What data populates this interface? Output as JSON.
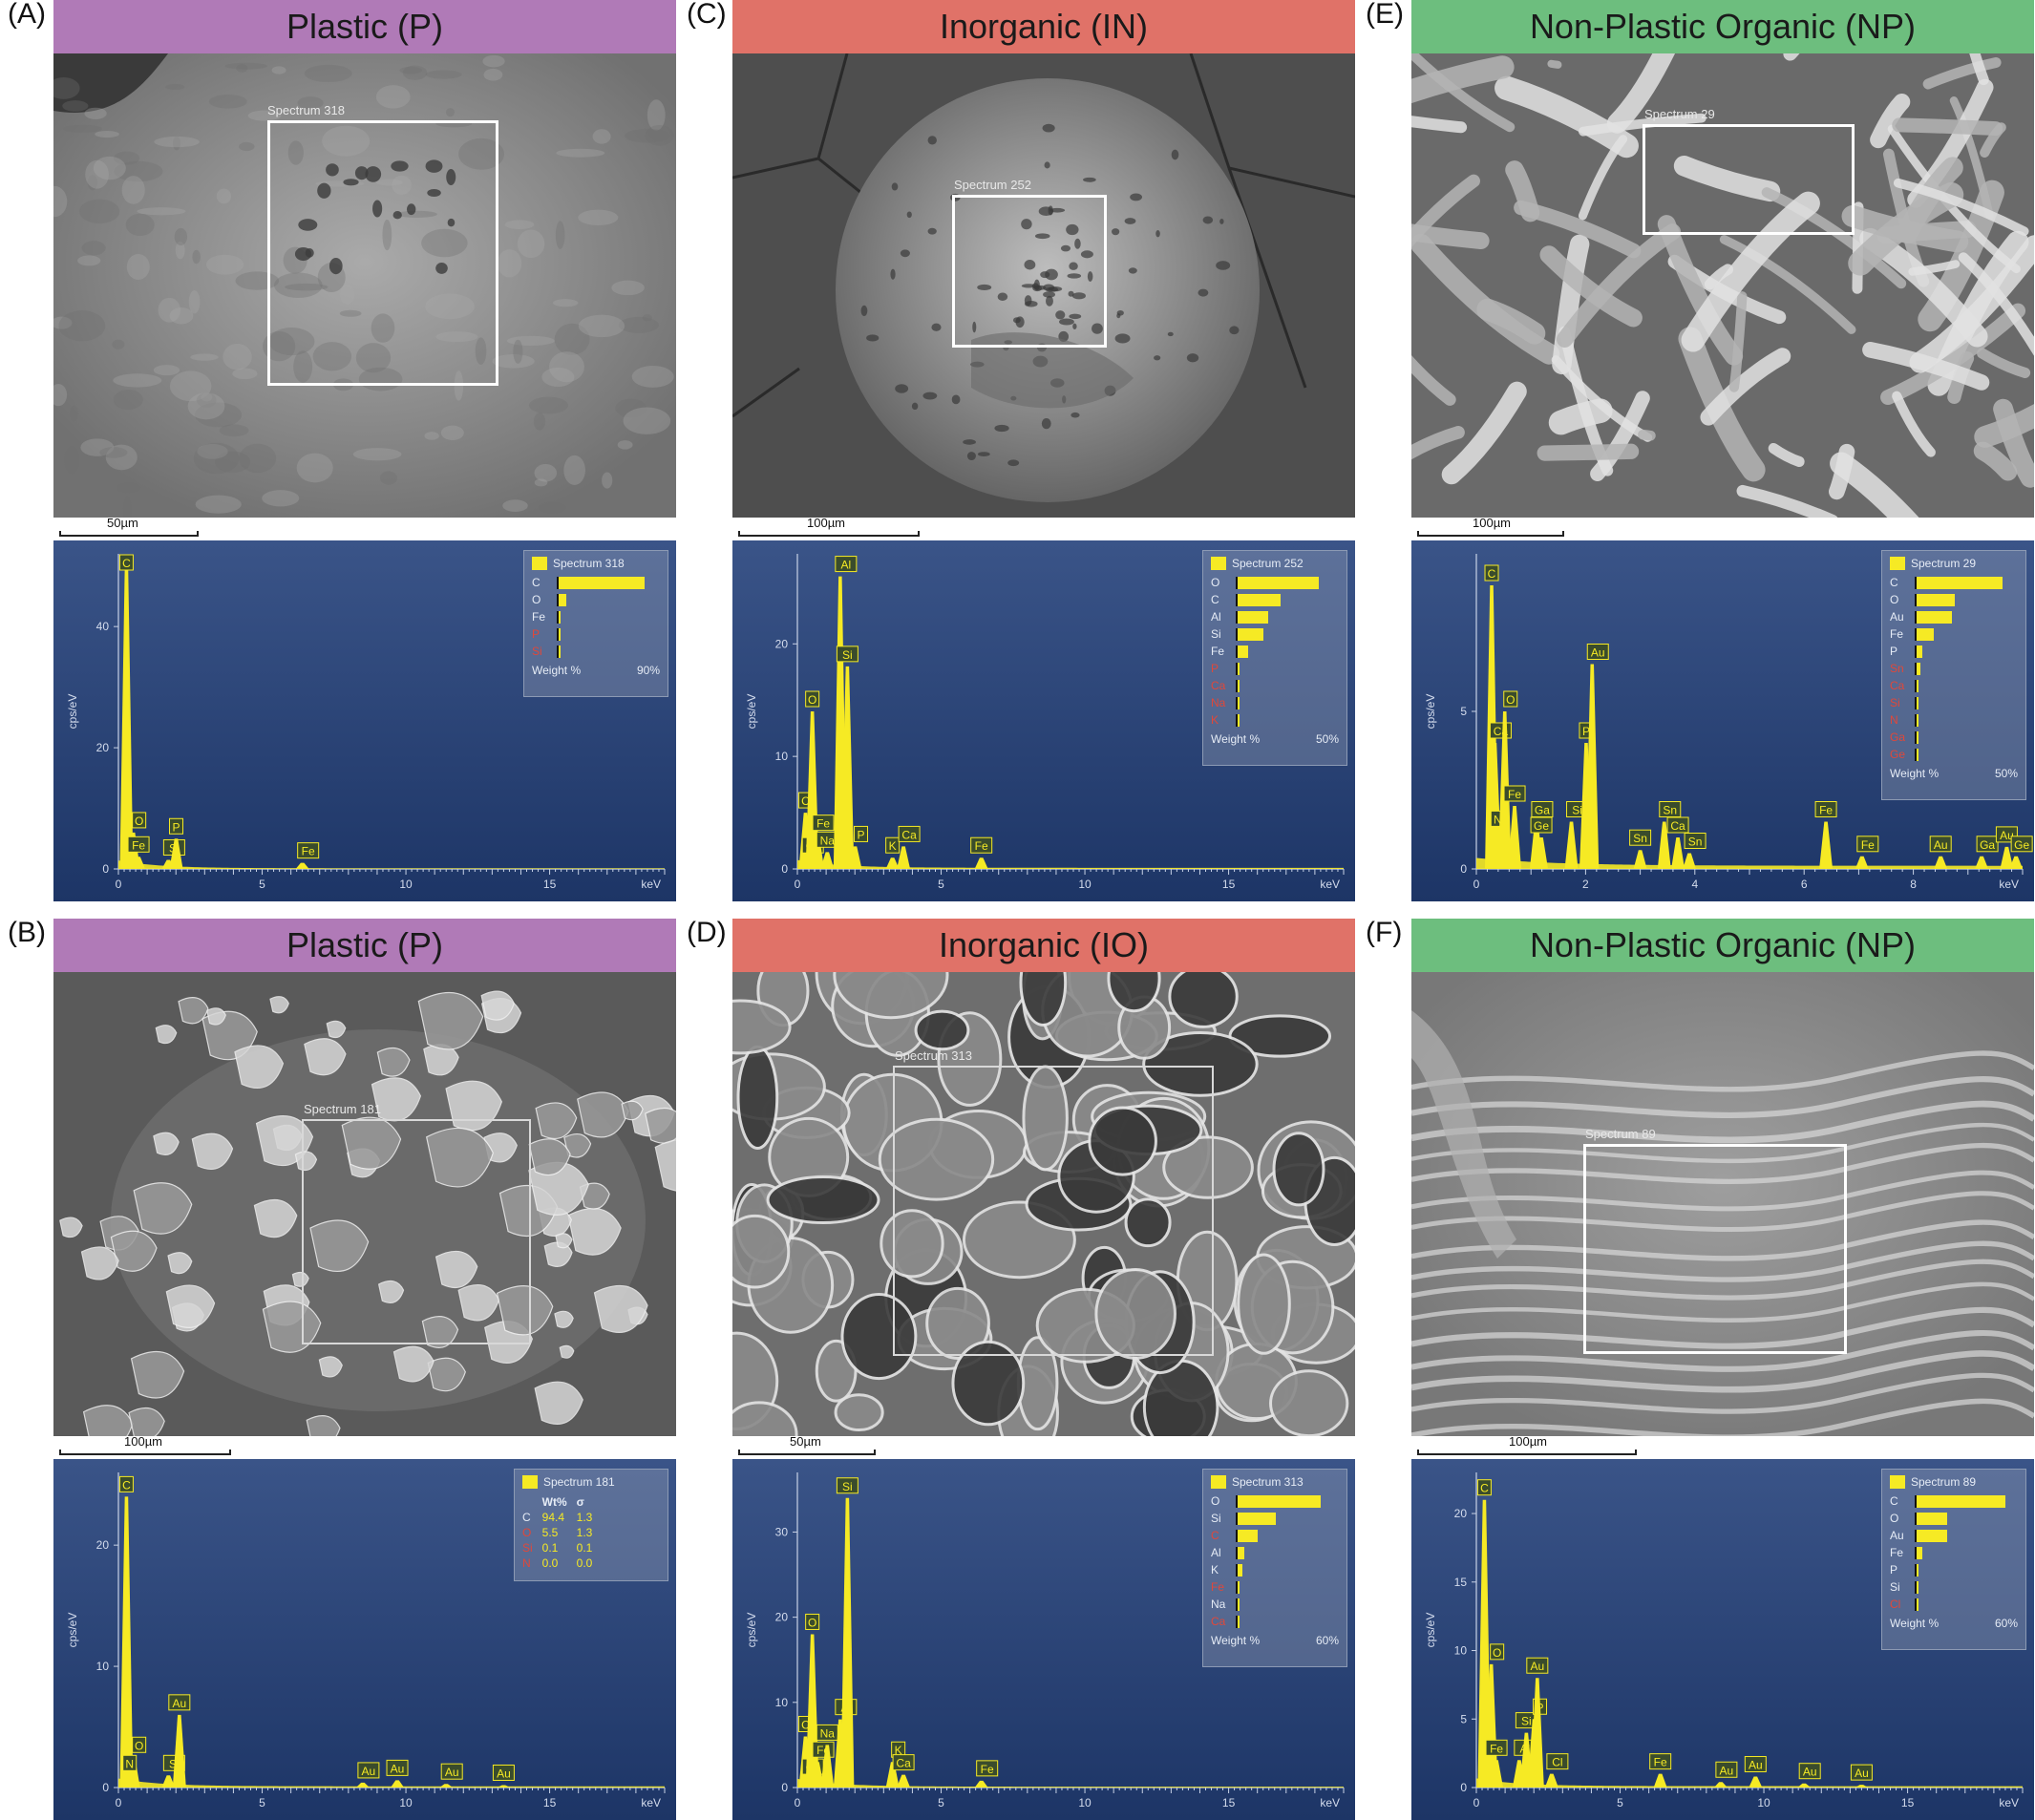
{
  "panels": [
    {
      "id": "A",
      "letter": "(A)",
      "title": "Plastic (P)",
      "banner_color": "#b07ab7",
      "sem_style": "blob",
      "roi_label": "Spectrum 318",
      "scale_label": "50µm",
      "eds": {
        "y_axis_label": "cps/eV",
        "x_axis_label": "keV",
        "y_ticks": [
          "0",
          "20",
          "40"
        ],
        "x_ticks": [
          "0",
          "5",
          "10",
          "15"
        ],
        "peaks": [
          {
            "el": "C",
            "x": 0.28,
            "y": 50
          },
          {
            "el": "O",
            "x": 0.52,
            "y": 6
          },
          {
            "el": "Fe",
            "x": 0.7,
            "y": 2
          },
          {
            "el": "Si",
            "x": 1.74,
            "y": 1.5
          },
          {
            "el": "P",
            "x": 2.01,
            "y": 5
          },
          {
            "el": "Fe",
            "x": 6.4,
            "y": 1
          }
        ],
        "legend_title": "Spectrum 318",
        "legend_type": "bars",
        "legend_items": [
          {
            "el": "C",
            "v": 0.85,
            "red": false
          },
          {
            "el": "O",
            "v": 0.08,
            "red": false
          },
          {
            "el": "Fe",
            "v": 0.01,
            "red": false
          },
          {
            "el": "P",
            "v": 0.01,
            "red": true
          },
          {
            "el": "Si",
            "v": 0.01,
            "red": true
          }
        ],
        "legend_footer_left": "Weight %",
        "legend_footer_right": "90%"
      }
    },
    {
      "id": "B",
      "letter": "(B)",
      "title": "Plastic (P)",
      "banner_color": "#b07ab7",
      "sem_style": "flakes",
      "roi_label": "Spectrum 181",
      "scale_label": "100µm",
      "eds": {
        "y_axis_label": "cps/eV",
        "x_axis_label": "keV",
        "y_ticks": [
          "0",
          "10",
          "20"
        ],
        "x_ticks": [
          "0",
          "5",
          "10",
          "15"
        ],
        "peaks": [
          {
            "el": "C",
            "x": 0.28,
            "y": 24
          },
          {
            "el": "O",
            "x": 0.52,
            "y": 2.5
          },
          {
            "el": "N",
            "x": 0.39,
            "y": 1
          },
          {
            "el": "Si",
            "x": 1.74,
            "y": 1
          },
          {
            "el": "Au",
            "x": 2.12,
            "y": 6
          },
          {
            "el": "Au",
            "x": 8.5,
            "y": 0.4
          },
          {
            "el": "Au",
            "x": 9.7,
            "y": 0.6
          },
          {
            "el": "Au",
            "x": 11.4,
            "y": 0.3
          },
          {
            "el": "Au",
            "x": 13.4,
            "y": 0.2
          }
        ],
        "legend_title": "Spectrum 181",
        "legend_type": "table",
        "legend_headers": [
          "Wt%",
          "σ"
        ],
        "legend_rows": [
          {
            "el": "C",
            "wt": "94.4",
            "sigma": "1.3",
            "red": false
          },
          {
            "el": "O",
            "wt": "5.5",
            "sigma": "1.3",
            "red": true
          },
          {
            "el": "Si",
            "wt": "0.1",
            "sigma": "0.1",
            "red": true
          },
          {
            "el": "N",
            "wt": "0.0",
            "sigma": "0.0",
            "red": true
          }
        ]
      }
    },
    {
      "id": "C",
      "letter": "(C)",
      "title": "Inorganic (IN)",
      "banner_color": "#e07268",
      "sem_style": "sphere",
      "roi_label": "Spectrum 252",
      "scale_label": "100µm",
      "eds": {
        "y_axis_label": "cps/eV",
        "x_axis_label": "keV",
        "y_ticks": [
          "0",
          "10",
          "20"
        ],
        "x_ticks": [
          "0",
          "5",
          "10",
          "15"
        ],
        "peaks": [
          {
            "el": "C",
            "x": 0.28,
            "y": 5
          },
          {
            "el": "Ca",
            "x": 0.34,
            "y": 1
          },
          {
            "el": "O",
            "x": 0.52,
            "y": 14
          },
          {
            "el": "Fe",
            "x": 0.7,
            "y": 3
          },
          {
            "el": "Na",
            "x": 1.04,
            "y": 1.5
          },
          {
            "el": "Al",
            "x": 1.49,
            "y": 26
          },
          {
            "el": "Si",
            "x": 1.74,
            "y": 18
          },
          {
            "el": "P",
            "x": 2.01,
            "y": 2
          },
          {
            "el": "K",
            "x": 3.31,
            "y": 1
          },
          {
            "el": "Ca",
            "x": 3.69,
            "y": 2
          },
          {
            "el": "Fe",
            "x": 6.4,
            "y": 1
          }
        ],
        "legend_title": "Spectrum 252",
        "legend_type": "bars",
        "legend_items": [
          {
            "el": "O",
            "v": 0.8,
            "red": false
          },
          {
            "el": "C",
            "v": 0.42,
            "red": false
          },
          {
            "el": "Al",
            "v": 0.3,
            "red": false
          },
          {
            "el": "Si",
            "v": 0.25,
            "red": false
          },
          {
            "el": "Fe",
            "v": 0.1,
            "red": false
          },
          {
            "el": "P",
            "v": 0.02,
            "red": true
          },
          {
            "el": "Ca",
            "v": 0.02,
            "red": true
          },
          {
            "el": "Na",
            "v": 0.01,
            "red": true
          },
          {
            "el": "K",
            "v": 0.01,
            "red": true
          }
        ],
        "legend_footer_left": "Weight %",
        "legend_footer_right": "50%"
      }
    },
    {
      "id": "D",
      "letter": "(D)",
      "title": "Inorganic (IO)",
      "banner_color": "#e07268",
      "sem_style": "cells",
      "roi_label": "Spectrum 313",
      "scale_label": "50µm",
      "eds": {
        "y_axis_label": "cps/eV",
        "x_axis_label": "keV",
        "y_ticks": [
          "0",
          "10",
          "20",
          "30"
        ],
        "x_ticks": [
          "0",
          "5",
          "10",
          "15"
        ],
        "peaks": [
          {
            "el": "C",
            "x": 0.28,
            "y": 6
          },
          {
            "el": "Ca",
            "x": 0.34,
            "y": 1
          },
          {
            "el": "O",
            "x": 0.52,
            "y": 18
          },
          {
            "el": "Fe",
            "x": 0.7,
            "y": 3
          },
          {
            "el": "Na",
            "x": 1.04,
            "y": 5
          },
          {
            "el": "Al",
            "x": 1.49,
            "y": 8
          },
          {
            "el": "Si",
            "x": 1.74,
            "y": 34
          },
          {
            "el": "K",
            "x": 3.31,
            "y": 3
          },
          {
            "el": "Ca",
            "x": 3.69,
            "y": 1.5
          },
          {
            "el": "Fe",
            "x": 6.4,
            "y": 0.8
          }
        ],
        "legend_title": "Spectrum 313",
        "legend_type": "bars",
        "legend_items": [
          {
            "el": "O",
            "v": 0.82,
            "red": false
          },
          {
            "el": "Si",
            "v": 0.38,
            "red": false
          },
          {
            "el": "C",
            "v": 0.2,
            "red": true
          },
          {
            "el": "Al",
            "v": 0.07,
            "red": false
          },
          {
            "el": "K",
            "v": 0.05,
            "red": false
          },
          {
            "el": "Fe",
            "v": 0.02,
            "red": true
          },
          {
            "el": "Na",
            "v": 0.01,
            "red": false
          },
          {
            "el": "Ca",
            "v": 0.01,
            "red": true
          }
        ],
        "legend_footer_left": "Weight %",
        "legend_footer_right": "60%"
      }
    },
    {
      "id": "E",
      "letter": "(E)",
      "title": "Non-Plastic Organic (NP)",
      "banner_color": "#6dbe7e",
      "sem_style": "fibers",
      "roi_label": "Spectrum 29",
      "scale_label": "100µm",
      "eds": {
        "y_axis_label": "cps/eV",
        "x_axis_label": "keV",
        "y_ticks": [
          "0",
          "5"
        ],
        "x_ticks": [
          "0",
          "2",
          "4",
          "6",
          "8"
        ],
        "peaks": [
          {
            "el": "C",
            "x": 0.28,
            "y": 9
          },
          {
            "el": "Ca",
            "x": 0.34,
            "y": 4
          },
          {
            "el": "N",
            "x": 0.39,
            "y": 1.2
          },
          {
            "el": "O",
            "x": 0.52,
            "y": 5
          },
          {
            "el": "Fe",
            "x": 0.7,
            "y": 2
          },
          {
            "el": "Ga",
            "x": 1.1,
            "y": 1.5
          },
          {
            "el": "Ge",
            "x": 1.19,
            "y": 1
          },
          {
            "el": "Si",
            "x": 1.74,
            "y": 1.5
          },
          {
            "el": "P",
            "x": 2.01,
            "y": 4
          },
          {
            "el": "Au",
            "x": 2.12,
            "y": 6.5
          },
          {
            "el": "Sn",
            "x": 3.0,
            "y": 0.6
          },
          {
            "el": "Sn",
            "x": 3.44,
            "y": 1.5
          },
          {
            "el": "Ca",
            "x": 3.69,
            "y": 1
          },
          {
            "el": "Sn",
            "x": 3.9,
            "y": 0.5
          },
          {
            "el": "Fe",
            "x": 6.4,
            "y": 1.5
          },
          {
            "el": "Fe",
            "x": 7.06,
            "y": 0.4
          },
          {
            "el": "Au",
            "x": 8.5,
            "y": 0.4
          },
          {
            "el": "Ga",
            "x": 9.25,
            "y": 0.4
          },
          {
            "el": "Au",
            "x": 9.71,
            "y": 0.7
          },
          {
            "el": "Ge",
            "x": 9.88,
            "y": 0.4
          }
        ],
        "legend_title": "Spectrum 29",
        "legend_type": "bars",
        "legend_items": [
          {
            "el": "C",
            "v": 0.85,
            "red": false
          },
          {
            "el": "O",
            "v": 0.38,
            "red": false
          },
          {
            "el": "Au",
            "v": 0.35,
            "red": false
          },
          {
            "el": "Fe",
            "v": 0.17,
            "red": false
          },
          {
            "el": "P",
            "v": 0.06,
            "red": false
          },
          {
            "el": "Sn",
            "v": 0.04,
            "red": true
          },
          {
            "el": "Ca",
            "v": 0.01,
            "red": true
          },
          {
            "el": "Si",
            "v": 0.01,
            "red": true
          },
          {
            "el": "N",
            "v": 0.01,
            "red": true
          },
          {
            "el": "Ga",
            "v": 0.01,
            "red": true
          },
          {
            "el": "Ge",
            "v": 0.01,
            "red": true
          }
        ],
        "legend_footer_left": "Weight %",
        "legend_footer_right": "50%"
      }
    },
    {
      "id": "F",
      "letter": "(F)",
      "title": "Non-Plastic Organic (NP)",
      "banner_color": "#6dbe7e",
      "sem_style": "waves",
      "roi_label": "Spectrum 89",
      "scale_label": "100µm",
      "eds": {
        "y_axis_label": "cps/eV",
        "x_axis_label": "keV",
        "y_ticks": [
          "0",
          "5",
          "10",
          "15",
          "20"
        ],
        "x_ticks": [
          "0",
          "5",
          "10",
          "15"
        ],
        "peaks": [
          {
            "el": "C",
            "x": 0.28,
            "y": 21
          },
          {
            "el": "O",
            "x": 0.52,
            "y": 9
          },
          {
            "el": "Fe",
            "x": 0.7,
            "y": 2
          },
          {
            "el": "Al",
            "x": 1.49,
            "y": 2
          },
          {
            "el": "Si",
            "x": 1.74,
            "y": 4
          },
          {
            "el": "P",
            "x": 2.01,
            "y": 5
          },
          {
            "el": "Au",
            "x": 2.12,
            "y": 8
          },
          {
            "el": "Cl",
            "x": 2.62,
            "y": 1
          },
          {
            "el": "Fe",
            "x": 6.4,
            "y": 1
          },
          {
            "el": "Au",
            "x": 8.5,
            "y": 0.4
          },
          {
            "el": "Au",
            "x": 9.71,
            "y": 0.8
          },
          {
            "el": "Au",
            "x": 11.4,
            "y": 0.3
          },
          {
            "el": "Au",
            "x": 13.4,
            "y": 0.2
          }
        ],
        "legend_title": "Spectrum 89",
        "legend_type": "bars",
        "legend_items": [
          {
            "el": "C",
            "v": 0.88,
            "red": false
          },
          {
            "el": "O",
            "v": 0.3,
            "red": false
          },
          {
            "el": "Au",
            "v": 0.3,
            "red": false
          },
          {
            "el": "Fe",
            "v": 0.06,
            "red": false
          },
          {
            "el": "P",
            "v": 0.01,
            "red": false
          },
          {
            "el": "Si",
            "v": 0.01,
            "red": false
          },
          {
            "el": "Cl",
            "v": 0.01,
            "red": true
          }
        ],
        "legend_footer_left": "Weight %",
        "legend_footer_right": "60%"
      }
    }
  ]
}
